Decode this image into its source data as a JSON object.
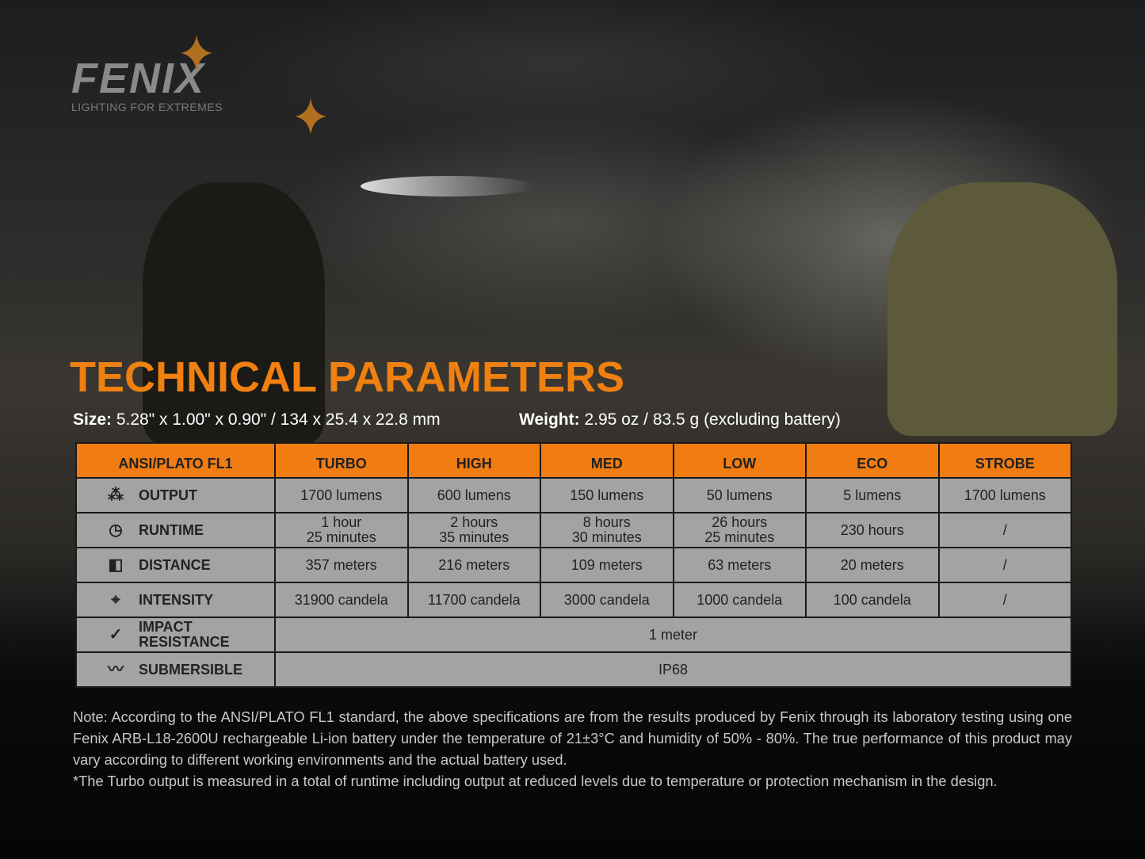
{
  "brand": {
    "name": "Fenix",
    "tagline": "LIGHTING FOR EXTREMES",
    "accent": "#f07c12"
  },
  "title": "TECHNICAL PARAMETERS",
  "specs": {
    "size_label": "Size:",
    "size_value": "5.28\" x 1.00\" x 0.90\" / 134 x 25.4 x 22.8 mm",
    "weight_label": "Weight:",
    "weight_value": "2.95 oz / 83.5 g (excluding battery)"
  },
  "table": {
    "headers": [
      "ANSI/PLATO FL1",
      "TURBO",
      "HIGH",
      "MED",
      "LOW",
      "ECO",
      "STROBE"
    ],
    "rows": [
      {
        "label": "OUTPUT",
        "icon": "burst-icon",
        "cells": [
          "1700 lumens",
          "600 lumens",
          "150 lumens",
          "50 lumens",
          "5 lumens",
          "1700 lumens"
        ]
      },
      {
        "label": "RUNTIME",
        "icon": "clock-icon",
        "cells": [
          [
            "1 hour",
            "25 minutes"
          ],
          [
            "2 hours",
            "35 minutes"
          ],
          [
            "8 hours",
            "30 minutes"
          ],
          [
            "26 hours",
            "25 minutes"
          ],
          "230 hours",
          "/"
        ]
      },
      {
        "label": "DISTANCE",
        "icon": "beam-distance-icon",
        "cells": [
          "357 meters",
          "216 meters",
          "109 meters",
          "63 meters",
          "20 meters",
          "/"
        ]
      },
      {
        "label": "INTENSITY",
        "icon": "target-icon",
        "cells": [
          "31900 candela",
          "11700 candela",
          "3000 candela",
          "1000 candela",
          "100 candela",
          "/"
        ]
      },
      {
        "label1": "IMPACT",
        "label2": "RESISTANCE",
        "icon": "impact-icon",
        "value": "1 meter"
      },
      {
        "label": "SUBMERSIBLE",
        "icon": "water-icon",
        "value": "IP68"
      }
    ]
  },
  "note": {
    "text": "Note: According to the ANSI/PLATO FL1 standard, the above specifications are from the results produced by Fenix through its laboratory testing using one Fenix ARB-L18-2600U rechargeable Li-ion battery under the temperature of 21±3°C and humidity of 50% - 80%. The true performance of this product may vary according to different working environments and the actual battery used.",
    "footnote": "*The Turbo output is measured in a total of runtime including output at reduced levels due to temperature or protection mechanism in the design."
  }
}
